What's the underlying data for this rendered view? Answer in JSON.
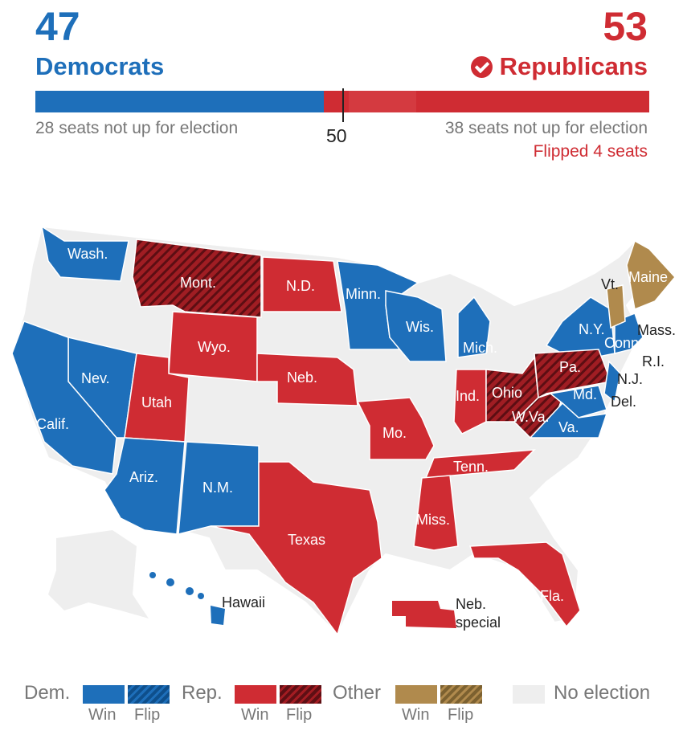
{
  "header": {
    "dem_count": "47",
    "dem_label": "Democrats",
    "rep_count": "53",
    "rep_label": "Republicans",
    "dem_note": "28 seats not up for election",
    "rep_note": "38 seats not up for election",
    "flip_note": "Flipped 4 seats",
    "majority_label": "50"
  },
  "seat_bar": {
    "total": 100,
    "dem_held": 28,
    "dem_won": 19,
    "rep_flipped": 4,
    "rep_won": 11,
    "rep_held": 38
  },
  "colors": {
    "dem": "#1e6fba",
    "rep": "#cf2c33",
    "rep_flip": "#8f1a20",
    "other": "#b08a4d",
    "no_election": "#eeeeee"
  },
  "states": [
    {
      "name": "Wash.",
      "result": "dem-win"
    },
    {
      "name": "Mont.",
      "result": "rep-flip"
    },
    {
      "name": "N.D.",
      "result": "rep-win"
    },
    {
      "name": "Minn.",
      "result": "dem-win"
    },
    {
      "name": "Vt.",
      "result": "other-win"
    },
    {
      "name": "Maine",
      "result": "other-win"
    },
    {
      "name": "Wyo.",
      "result": "rep-win"
    },
    {
      "name": "Wis.",
      "result": "dem-win"
    },
    {
      "name": "Mich.",
      "result": "dem-win"
    },
    {
      "name": "N.Y.",
      "result": "dem-win"
    },
    {
      "name": "Mass.",
      "result": "dem-win"
    },
    {
      "name": "Conn.",
      "result": "dem-win"
    },
    {
      "name": "R.I.",
      "result": "dem-win"
    },
    {
      "name": "Nev.",
      "result": "dem-win"
    },
    {
      "name": "Neb.",
      "result": "rep-win"
    },
    {
      "name": "Pa.",
      "result": "rep-flip"
    },
    {
      "name": "N.J.",
      "result": "dem-win"
    },
    {
      "name": "Utah",
      "result": "rep-win"
    },
    {
      "name": "Ind.",
      "result": "rep-win"
    },
    {
      "name": "Ohio",
      "result": "rep-flip"
    },
    {
      "name": "Md.",
      "result": "dem-win"
    },
    {
      "name": "Del.",
      "result": "dem-win"
    },
    {
      "name": "Calif.",
      "result": "dem-win"
    },
    {
      "name": "W.Va.",
      "result": "rep-flip"
    },
    {
      "name": "Mo.",
      "result": "rep-win"
    },
    {
      "name": "Va.",
      "result": "dem-win"
    },
    {
      "name": "Tenn.",
      "result": "rep-win"
    },
    {
      "name": "Ariz.",
      "result": "dem-win"
    },
    {
      "name": "N.M.",
      "result": "dem-win"
    },
    {
      "name": "Miss.",
      "result": "rep-win"
    },
    {
      "name": "Texas",
      "result": "rep-win"
    },
    {
      "name": "Fla.",
      "result": "rep-win"
    },
    {
      "name": "Hawaii",
      "result": "dem-win"
    },
    {
      "name": "Neb. special",
      "result": "rep-win"
    }
  ],
  "map_labels": {
    "wash": "Wash.",
    "mont": "Mont.",
    "nd": "N.D.",
    "minn": "Minn.",
    "vt": "Vt.",
    "maine": "Maine",
    "wyo": "Wyo.",
    "wis": "Wis.",
    "mich": "Mich.",
    "ny": "N.Y.",
    "mass": "Mass.",
    "conn": "Conn.",
    "ri": "R.I.",
    "nev": "Nev.",
    "neb": "Neb.",
    "pa": "Pa.",
    "nj": "N.J.",
    "utah": "Utah",
    "ind": "Ind.",
    "ohio": "Ohio",
    "md": "Md.",
    "del": "Del.",
    "calif": "Calif.",
    "wva": "W.Va.",
    "mo": "Mo.",
    "va": "Va.",
    "tenn": "Tenn.",
    "ariz": "Ariz.",
    "nm": "N.M.",
    "miss": "Miss.",
    "texas": "Texas",
    "fla": "Fla.",
    "hawaii": "Hawaii",
    "neb_special_1": "Neb.",
    "neb_special_2": "special"
  },
  "legend": {
    "dem": "Dem.",
    "rep": "Rep.",
    "other": "Other",
    "no_election": "No election",
    "win": "Win",
    "flip": "Flip"
  }
}
